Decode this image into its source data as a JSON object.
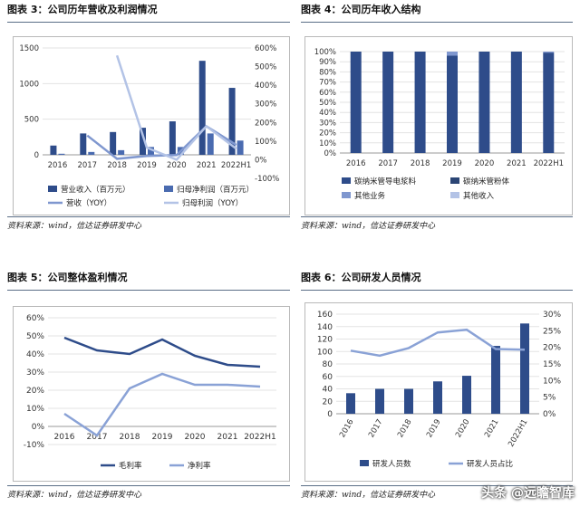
{
  "panels": [
    {
      "title": "图表 3：公司历年营收及利润情况",
      "source": "资料来源：wind，信达证券研发中心",
      "chart_data": {
        "type": "bar",
        "categories": [
          "2016",
          "2017",
          "2018",
          "2019",
          "2020",
          "2021",
          "2022H1"
        ],
        "ylim": [
          0,
          1500
        ],
        "yticks": [
          0,
          500,
          1000,
          1500
        ],
        "y2lim": [
          -100,
          600
        ],
        "y2ticks": [
          "-100%",
          "0%",
          "100%",
          "200%",
          "300%",
          "400%",
          "500%",
          "600%"
        ],
        "bars": [
          {
            "name": "营业收入（百万元）",
            "color": "#2e4c8a",
            "values": [
              130,
              300,
              320,
              380,
              470,
              1320,
              940
            ]
          },
          {
            "name": "归母净利润（百万元）",
            "color": "#4a6bb0",
            "values": [
              15,
              40,
              65,
              110,
              110,
              300,
              200
            ]
          }
        ],
        "lines": [
          {
            "name": "营收（YOY）",
            "color": "#7f97cf",
            "values": [
              null,
              130,
              5,
              20,
              25,
              180,
              80
            ]
          },
          {
            "name": "归母利润（YOY）",
            "color": "#b3c3e6",
            "values": [
              null,
              null,
              560,
              65,
              0,
              180,
              60
            ]
          }
        ]
      }
    },
    {
      "title": "图表 4：公司历年收入结构",
      "source": "资料来源：wind，信达证券研发中心",
      "chart_data": {
        "type": "bar",
        "stacked": true,
        "categories": [
          "2016",
          "2017",
          "2018",
          "2019",
          "2020",
          "2021",
          "2022H1"
        ],
        "ylim": [
          0,
          100
        ],
        "yticks": [
          "0%",
          "10%",
          "20%",
          "30%",
          "40%",
          "50%",
          "60%",
          "70%",
          "80%",
          "90%",
          "100%"
        ],
        "series": [
          {
            "name": "碳纳米管导电浆料",
            "color": "#2e4c8a",
            "values": [
              100,
              100,
              100,
              96,
              100,
              100,
              99
            ]
          },
          {
            "name": "碳纳米管粉体",
            "color": "#2b4575",
            "values": [
              0,
              0,
              0,
              0,
              0,
              0,
              0
            ]
          },
          {
            "name": "其他业务",
            "color": "#7f97cf",
            "values": [
              0,
              0,
              0,
              4,
              0,
              0,
              1
            ]
          },
          {
            "name": "其他收入",
            "color": "#b3c3e6",
            "values": [
              0,
              0,
              0,
              0,
              0,
              0,
              0
            ]
          }
        ]
      }
    },
    {
      "title": "图表 5：公司整体盈利情况",
      "source": "资料来源：wind，信达证券研发中心",
      "chart_data": {
        "type": "line",
        "categories": [
          "2016",
          "2017",
          "2018",
          "2019",
          "2020",
          "2021",
          "2022H1"
        ],
        "ylim": [
          -10,
          60
        ],
        "yticks": [
          "-10%",
          "0%",
          "10%",
          "20%",
          "30%",
          "40%",
          "50%",
          "60%"
        ],
        "series": [
          {
            "name": "毛利率",
            "color": "#2e4c8a",
            "values": [
              49,
              42,
              40,
              48,
              39,
              34,
              33
            ]
          },
          {
            "name": "净利率",
            "color": "#8aa2d6",
            "values": [
              7,
              -5,
              21,
              29,
              23,
              23,
              22
            ]
          }
        ]
      }
    },
    {
      "title": "图表 6：公司研发人员情况",
      "source": "资料来源：wind，信达证券研发中心",
      "chart_data": {
        "type": "bar",
        "categories": [
          "2016",
          "2017",
          "2018",
          "2019",
          "2020",
          "2021",
          "2022H1"
        ],
        "ylim": [
          0,
          160
        ],
        "yticks": [
          0,
          20,
          40,
          60,
          80,
          100,
          120,
          140,
          160
        ],
        "y2lim": [
          0,
          30
        ],
        "y2ticks": [
          "0%",
          "5%",
          "10%",
          "15%",
          "20%",
          "25%",
          "30%"
        ],
        "bars": [
          {
            "name": "研发人员数",
            "color": "#2e4c8a",
            "values": [
              33,
              40,
              40,
              52,
              61,
              109,
              145
            ]
          }
        ],
        "lines": [
          {
            "name": "研发人员占比",
            "color": "#8aa2d6",
            "values": [
              19,
              17.5,
              19.8,
              24.5,
              25.3,
              19.5,
              19.3
            ]
          }
        ]
      }
    }
  ],
  "watermark": "头条 @远瞻智库"
}
